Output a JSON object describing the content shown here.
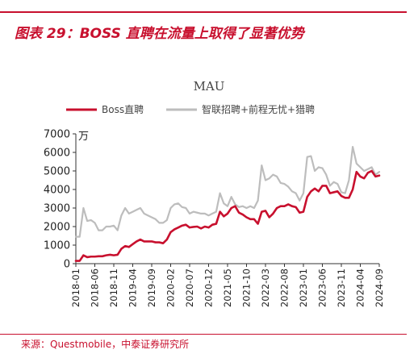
{
  "figure": {
    "title": "图表 29：BOSS 直聘在流量上取得了显著优势",
    "source": "来源：Questmobile，中泰证券研究所"
  },
  "colors": {
    "accent": "#c8102e",
    "boss_series": "#c8102e",
    "other_series": "#bdbdbd",
    "axis": "#333333"
  },
  "chart_data": {
    "type": "line",
    "title": "MAU",
    "ylabel": "万",
    "ylim": [
      0,
      7000
    ],
    "yticks": [
      0,
      1000,
      2000,
      3000,
      4000,
      5000,
      6000,
      7000
    ],
    "ytick_labels": [
      "0",
      "1000",
      "2000",
      "3000",
      "4000",
      "5000",
      "6000",
      "7000"
    ],
    "grid": false,
    "legend_position": "top",
    "x": [
      "2018-01",
      "2018-02",
      "2018-03",
      "2018-04",
      "2018-05",
      "2018-06",
      "2018-07",
      "2018-08",
      "2018-09",
      "2018-10",
      "2018-11",
      "2018-12",
      "2019-01",
      "2019-02",
      "2019-03",
      "2019-04",
      "2019-05",
      "2019-06",
      "2019-07",
      "2019-08",
      "2019-09",
      "2019-10",
      "2019-11",
      "2019-12",
      "2020-01",
      "2020-02",
      "2020-03",
      "2020-04",
      "2020-05",
      "2020-06",
      "2020-07",
      "2020-08",
      "2020-09",
      "2020-10",
      "2020-11",
      "2020-12",
      "2021-01",
      "2021-02",
      "2021-03",
      "2021-04",
      "2021-05",
      "2021-06",
      "2021-07",
      "2021-08",
      "2021-09",
      "2021-10",
      "2021-11",
      "2021-12",
      "2022-01",
      "2022-02",
      "2022-03",
      "2022-04",
      "2022-05",
      "2022-06",
      "2022-07",
      "2022-08",
      "2022-09",
      "2022-10",
      "2022-11",
      "2022-12",
      "2023-01",
      "2023-02",
      "2023-03",
      "2023-04",
      "2023-05",
      "2023-06",
      "2023-07",
      "2023-08",
      "2023-09",
      "2023-10",
      "2023-11",
      "2023-12",
      "2024-01",
      "2024-02",
      "2024-03",
      "2024-04",
      "2024-05",
      "2024-06",
      "2024-07",
      "2024-08",
      "2024-09"
    ],
    "xtick_labels": [
      "2018-01",
      "2018-06",
      "2018-11",
      "2019-04",
      "2019-09",
      "2020-02",
      "2020-07",
      "2020-12",
      "2021-05",
      "2021-10",
      "2022-03",
      "2022-08",
      "2023-01",
      "2023-06",
      "2023-11",
      "2024-04",
      "2024-09"
    ],
    "series": [
      {
        "name": "Boss直聘",
        "color": "#c8102e",
        "values": [
          150,
          150,
          450,
          350,
          380,
          380,
          400,
          400,
          450,
          480,
          450,
          480,
          800,
          950,
          900,
          1050,
          1200,
          1300,
          1200,
          1200,
          1200,
          1150,
          1150,
          1100,
          1300,
          1700,
          1850,
          1950,
          2050,
          2100,
          1950,
          1980,
          2000,
          1900,
          2000,
          1950,
          2100,
          2150,
          2800,
          2550,
          2700,
          3000,
          3100,
          2750,
          2650,
          2500,
          2400,
          2400,
          2150,
          2800,
          2850,
          2500,
          2700,
          3000,
          3100,
          3100,
          3200,
          3100,
          3050,
          2750,
          2800,
          3600,
          3900,
          4050,
          3900,
          4200,
          4200,
          3800,
          3850,
          3900,
          3650,
          3550,
          3550,
          4000,
          4950,
          4700,
          4600,
          4900,
          5000,
          4700,
          4750
        ]
      },
      {
        "name": "智联招聘+前程无忧+猎聘",
        "color": "#bdbdbd",
        "values": [
          1450,
          1450,
          3000,
          2300,
          2350,
          2200,
          1800,
          1800,
          2000,
          2000,
          2050,
          1800,
          2600,
          3000,
          2700,
          2800,
          2900,
          3000,
          2700,
          2600,
          2500,
          2400,
          2200,
          2200,
          2350,
          3000,
          3200,
          3250,
          3050,
          3000,
          2700,
          2800,
          2750,
          2700,
          2700,
          2600,
          2700,
          2800,
          3800,
          3250,
          3100,
          3600,
          3200,
          3050,
          3100,
          3000,
          3100,
          3000,
          3400,
          5300,
          4500,
          4600,
          4800,
          4700,
          4350,
          4300,
          4150,
          3900,
          3800,
          3400,
          3800,
          5750,
          5800,
          5000,
          5200,
          5150,
          4800,
          4200,
          4400,
          4300,
          3850,
          3800,
          4500,
          6300,
          5400,
          5200,
          5000,
          5100,
          5200,
          4800,
          4950
        ]
      }
    ]
  }
}
